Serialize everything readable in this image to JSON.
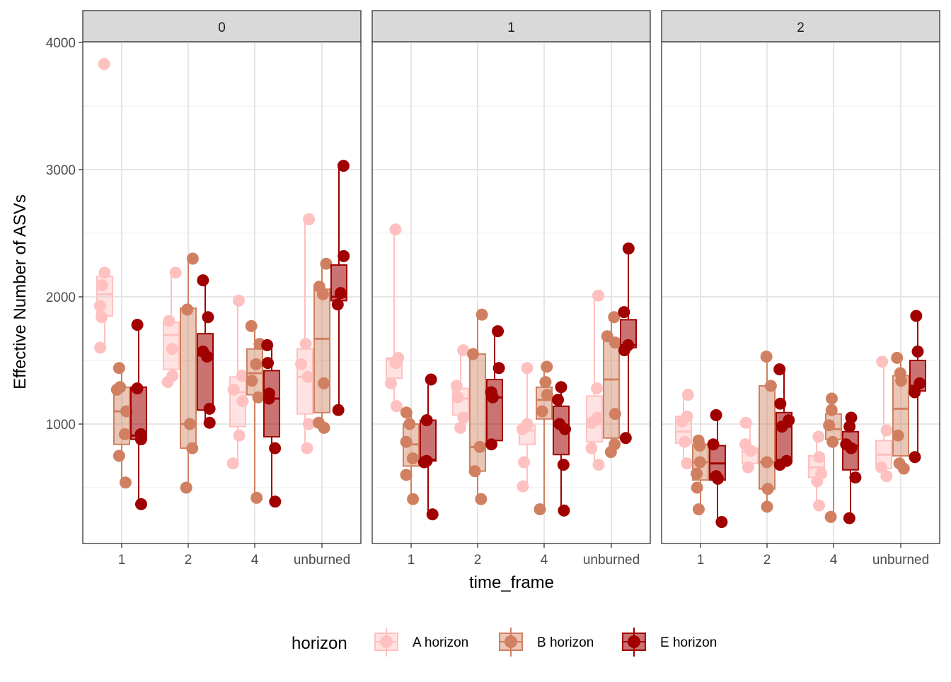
{
  "chart_data": {
    "type": "box",
    "ylabel": "Effective Number of ASVs",
    "xlabel": "time_frame",
    "categories": [
      "1",
      "2",
      "4",
      "unburned"
    ],
    "y_ticks": [
      1000,
      2000,
      3000,
      4000
    ],
    "ylim": [
      50,
      4300
    ],
    "grid": true,
    "legend": {
      "title": "horizon",
      "position": "bottom",
      "entries": [
        "A horizon",
        "B horizon",
        "E horizon"
      ]
    },
    "colors": {
      "A horizon": "#ffc0c0",
      "B horizon": "#d08060",
      "E horizon": "#a00000"
    },
    "panels": [
      {
        "label": "0",
        "groups": [
          {
            "category": "1",
            "series": "A horizon",
            "box": [
              1600,
              1850,
              2020,
              2160,
              2190
            ],
            "points": [
              3830,
              2190,
              2090,
              1930,
              1840,
              1600
            ]
          },
          {
            "category": "1",
            "series": "B horizon",
            "box": [
              540,
              840,
              1100,
              1290,
              1440
            ],
            "points": [
              1440,
              1290,
              1270,
              1100,
              920,
              750,
              540
            ]
          },
          {
            "category": "1",
            "series": "E horizon",
            "box": [
              370,
              880,
              910,
              1290,
              1780
            ],
            "points": [
              1780,
              1280,
              920,
              880,
              370
            ]
          },
          {
            "category": "2",
            "series": "A horizon",
            "box": [
              1330,
              1430,
              1700,
              1800,
              2190
            ],
            "points": [
              2190,
              1810,
              1590,
              1380,
              1330
            ]
          },
          {
            "category": "2",
            "series": "B horizon",
            "box": [
              500,
              810,
              1000,
              1910,
              2300
            ],
            "points": [
              2300,
              1900,
              1000,
              810,
              500
            ]
          },
          {
            "category": "2",
            "series": "E horizon",
            "box": [
              1010,
              1110,
              1540,
              1710,
              2130
            ],
            "points": [
              2130,
              1840,
              1570,
              1530,
              1120,
              1010
            ]
          },
          {
            "category": "4",
            "series": "A horizon",
            "box": [
              690,
              980,
              1250,
              1370,
              1970
            ],
            "points": [
              1970,
              1380,
              1270,
              1180,
              910,
              690
            ]
          },
          {
            "category": "4",
            "series": "B horizon",
            "box": [
              420,
              1230,
              1400,
              1590,
              1770
            ],
            "points": [
              1770,
              1630,
              1470,
              1340,
              1210,
              420
            ]
          },
          {
            "category": "4",
            "series": "E horizon",
            "box": [
              390,
              900,
              1200,
              1420,
              1620
            ],
            "points": [
              1620,
              1480,
              1240,
              1200,
              810,
              390
            ]
          },
          {
            "category": "unburned",
            "series": "A horizon",
            "box": [
              810,
              1080,
              1370,
              1590,
              2610
            ],
            "points": [
              2610,
              1630,
              1470,
              1370,
              1000,
              810
            ]
          },
          {
            "category": "unburned",
            "series": "B horizon",
            "box": [
              970,
              1090,
              1670,
              2060,
              2260
            ],
            "points": [
              2260,
              2080,
              2020,
              1320,
              1010,
              970
            ]
          },
          {
            "category": "unburned",
            "series": "E horizon",
            "box": [
              1110,
              1970,
              2000,
              2250,
              3030
            ],
            "points": [
              3030,
              2320,
              2030,
              1940,
              1110
            ]
          }
        ]
      },
      {
        "label": "1",
        "groups": [
          {
            "category": "1",
            "series": "A horizon",
            "box": [
              1140,
              1360,
              1510,
              1520,
              2530
            ],
            "points": [
              2530,
              1520,
              1480,
              1320,
              1140
            ]
          },
          {
            "category": "1",
            "series": "B horizon",
            "box": [
              410,
              670,
              840,
              1000,
              1090
            ],
            "points": [
              1090,
              1000,
              860,
              730,
              600,
              410
            ]
          },
          {
            "category": "1",
            "series": "E horizon",
            "box": [
              290,
              710,
              720,
              1030,
              1350
            ],
            "points": [
              1350,
              1030,
              710,
              700,
              290
            ]
          },
          {
            "category": "2",
            "series": "A horizon",
            "box": [
              970,
              1070,
              1200,
              1280,
              1580
            ],
            "points": [
              1580,
              1300,
              1210,
              1050,
              970
            ]
          },
          {
            "category": "2",
            "series": "B horizon",
            "box": [
              410,
              630,
              820,
              1550,
              1860
            ],
            "points": [
              1860,
              1550,
              820,
              630,
              410
            ]
          },
          {
            "category": "2",
            "series": "E horizon",
            "box": [
              820,
              870,
              1210,
              1350,
              1730
            ],
            "points": [
              1730,
              1440,
              1250,
              1210,
              840
            ]
          },
          {
            "category": "4",
            "series": "A horizon",
            "box": [
              510,
              840,
              950,
              990,
              1440
            ],
            "points": [
              1440,
              1000,
              960,
              700,
              510
            ]
          },
          {
            "category": "4",
            "series": "B horizon",
            "box": [
              330,
              1040,
              1190,
              1290,
              1450
            ],
            "points": [
              1450,
              1330,
              1230,
              1100,
              330
            ]
          },
          {
            "category": "4",
            "series": "E horizon",
            "box": [
              320,
              760,
              990,
              1140,
              1290
            ],
            "points": [
              1290,
              1190,
              1000,
              960,
              680,
              320
            ]
          },
          {
            "category": "unburned",
            "series": "A horizon",
            "box": [
              680,
              860,
              1000,
              1220,
              2010
            ],
            "points": [
              2010,
              1280,
              1050,
              1010,
              810,
              680
            ]
          },
          {
            "category": "unburned",
            "series": "B horizon",
            "box": [
              780,
              890,
              1350,
              1670,
              1840
            ],
            "points": [
              1840,
              1690,
              1640,
              1080,
              840,
              780
            ]
          },
          {
            "category": "unburned",
            "series": "E horizon",
            "box": [
              890,
              1600,
              1620,
              1820,
              2380
            ],
            "points": [
              2380,
              1880,
              1620,
              1580,
              890
            ]
          }
        ]
      },
      {
        "label": "2",
        "groups": [
          {
            "category": "1",
            "series": "A horizon",
            "box": [
              690,
              850,
              940,
              1060,
              1230
            ],
            "points": [
              1230,
              1060,
              1020,
              860,
              690
            ]
          },
          {
            "category": "1",
            "series": "B horizon",
            "box": [
              330,
              560,
              700,
              840,
              870
            ],
            "points": [
              870,
              830,
              700,
              610,
              500,
              330
            ]
          },
          {
            "category": "1",
            "series": "E horizon",
            "box": [
              230,
              560,
              690,
              830,
              1070
            ],
            "points": [
              1070,
              840,
              590,
              570,
              230
            ]
          },
          {
            "category": "2",
            "series": "A horizon",
            "box": [
              640,
              690,
              780,
              810,
              1010
            ],
            "points": [
              1010,
              840,
              790,
              660
            ]
          },
          {
            "category": "2",
            "series": "B horizon",
            "box": [
              350,
              490,
              700,
              1300,
              1530
            ],
            "points": [
              1530,
              1300,
              700,
              490,
              350
            ]
          },
          {
            "category": "2",
            "series": "E horizon",
            "box": [
              660,
              720,
              980,
              1090,
              1430
            ],
            "points": [
              1430,
              1160,
              1030,
              980,
              710,
              680
            ]
          },
          {
            "category": "4",
            "series": "A horizon",
            "box": [
              360,
              580,
              660,
              750,
              900
            ],
            "points": [
              900,
              740,
              610,
              550,
              360
            ]
          },
          {
            "category": "4",
            "series": "B horizon",
            "box": [
              270,
              880,
              960,
              1080,
              1200
            ],
            "points": [
              1200,
              1110,
              990,
              860,
              270
            ]
          },
          {
            "category": "4",
            "series": "E horizon",
            "box": [
              260,
              640,
              830,
              940,
              1050
            ],
            "points": [
              1050,
              980,
              840,
              810,
              580,
              260
            ]
          },
          {
            "category": "unburned",
            "series": "A horizon",
            "box": [
              590,
              650,
              760,
              870,
              1490
            ],
            "points": [
              1490,
              950,
              660,
              590
            ]
          },
          {
            "category": "unburned",
            "series": "B horizon",
            "box": [
              650,
              750,
              1120,
              1380,
              1520
            ],
            "points": [
              1520,
              1400,
              1340,
              910,
              690,
              650
            ]
          },
          {
            "category": "unburned",
            "series": "E horizon",
            "box": [
              740,
              1260,
              1300,
              1500,
              1850
            ],
            "points": [
              1850,
              1570,
              1320,
              1250,
              740
            ]
          }
        ]
      }
    ]
  }
}
